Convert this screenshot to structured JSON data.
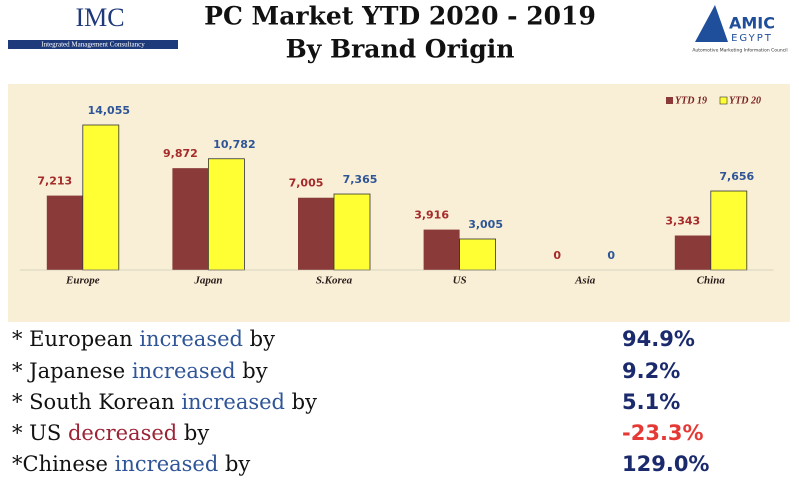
{
  "header": {
    "left_logo": {
      "name": "IMC",
      "tagline": "Integrated Management Consultancy"
    },
    "right_logo": {
      "name": "AMIC",
      "country": "EGYPT",
      "tagline": "Automotive Marketing Information Council"
    }
  },
  "chart_data": {
    "type": "bar",
    "title": "PC Market YTD 2020 - 2019",
    "subtitle": "By Brand Origin",
    "categories": [
      "Europe",
      "Japan",
      "S.Korea",
      "US",
      "Asia",
      "China"
    ],
    "series": [
      {
        "name": "YTD 19",
        "color": "#8b3a3a",
        "label_color": "#a52a2a",
        "values": [
          7213,
          9872,
          7005,
          3916,
          0,
          3343
        ],
        "value_labels": [
          "7,213",
          "9,872",
          "7,005",
          "3,916",
          "0",
          "3,343"
        ]
      },
      {
        "name": "YTD 20",
        "color": "#ffff33",
        "label_color": "#2f5597",
        "values": [
          14055,
          10782,
          7365,
          3005,
          0,
          7656
        ],
        "value_labels": [
          "14,055",
          "10,782",
          "7,365",
          "3,005",
          "0",
          "7,656"
        ]
      }
    ],
    "legend": "top-right"
  },
  "bullets": [
    {
      "subject": "* European",
      "verb": "increased",
      "tail": "by",
      "value": "94.9%",
      "trend": "up"
    },
    {
      "subject": "* Japanese",
      "verb": "increased",
      "tail": "by",
      "value": "9.2%",
      "trend": "up"
    },
    {
      "subject": "* South Korean",
      "verb": "increased",
      "tail": "by",
      "value": "5.1%",
      "trend": "up"
    },
    {
      "subject": "* US",
      "verb": "decreased",
      "tail": "by",
      "value": "-23.3%",
      "trend": "down"
    },
    {
      "subject": "*Chinese",
      "verb": "increased",
      "tail": "by",
      "value": "129.0%",
      "trend": "up"
    }
  ]
}
